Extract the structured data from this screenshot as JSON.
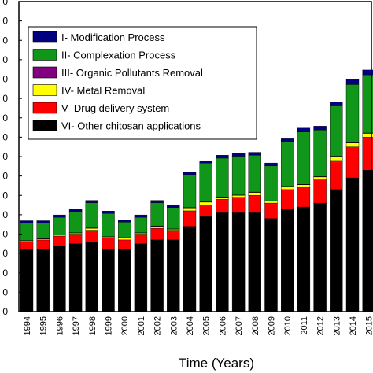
{
  "chart_data": {
    "type": "bar",
    "stacked": true,
    "title": "",
    "xlabel": "Time (Years)",
    "ylabel": "",
    "ylim": [
      0,
      16
    ],
    "yticks": [
      0,
      1,
      2,
      3,
      4,
      5,
      6,
      7,
      8,
      9,
      10,
      11,
      12,
      13,
      14,
      15,
      16
    ],
    "ytick_labels": [
      "0",
      "0",
      "0",
      "0",
      "0",
      "0",
      "0",
      "0",
      "0",
      "0",
      "0",
      "0",
      "0",
      "0",
      "0",
      "0",
      "0"
    ],
    "grid": false,
    "legend_position": "top-left",
    "categories": [
      "1994",
      "1995",
      "1996",
      "1997",
      "1998",
      "1999",
      "2000",
      "2001",
      "2002",
      "2003",
      "2004",
      "2005",
      "2006",
      "2007",
      "2008",
      "2009",
      "2010",
      "2011",
      "2012",
      "2013",
      "2014",
      "2015"
    ],
    "series": [
      {
        "name": "VI- Other chitosan applications",
        "color": "#000000",
        "values": [
          3.2,
          3.2,
          3.4,
          3.5,
          3.6,
          3.2,
          3.2,
          3.5,
          3.7,
          3.7,
          4.4,
          4.9,
          5.1,
          5.1,
          5.1,
          4.8,
          5.3,
          5.4,
          5.6,
          6.3,
          6.9,
          7.3
        ]
      },
      {
        "name": "V-  Drug delivery system",
        "color": "#ff0000",
        "values": [
          0.4,
          0.5,
          0.5,
          0.5,
          0.6,
          0.6,
          0.5,
          0.5,
          0.6,
          0.5,
          0.8,
          0.6,
          0.7,
          0.8,
          0.9,
          0.8,
          1.0,
          1.0,
          1.2,
          1.5,
          1.6,
          1.7
        ]
      },
      {
        "name": "IV- Metal Removal",
        "color": "#ffff00",
        "values": [
          0.05,
          0.05,
          0.05,
          0.05,
          0.1,
          0.05,
          0.1,
          0.05,
          0.1,
          0.05,
          0.15,
          0.15,
          0.1,
          0.1,
          0.15,
          0.1,
          0.15,
          0.15,
          0.15,
          0.2,
          0.2,
          0.2
        ]
      },
      {
        "name": "III- Organic Pollutants Removal",
        "color": "#800080",
        "values": [
          0.02,
          0.02,
          0.02,
          0.02,
          0.02,
          0.02,
          0.02,
          0.02,
          0.02,
          0.02,
          0.02,
          0.02,
          0.02,
          0.02,
          0.02,
          0.02,
          0.02,
          0.02,
          0.02,
          0.02,
          0.02,
          0.02
        ]
      },
      {
        "name": "II-  Complexation Process",
        "color": "#109618",
        "values": [
          0.9,
          0.8,
          0.9,
          1.1,
          1.3,
          1.2,
          0.8,
          0.8,
          1.2,
          1.1,
          1.7,
          2.0,
          2.0,
          2.0,
          1.9,
          1.8,
          2.3,
          2.7,
          2.4,
          2.6,
          3.0,
          3.0
        ]
      },
      {
        "name": "I-   Modification Process",
        "color": "#000080",
        "values": [
          0.12,
          0.12,
          0.12,
          0.12,
          0.12,
          0.12,
          0.12,
          0.12,
          0.12,
          0.12,
          0.12,
          0.12,
          0.15,
          0.15,
          0.15,
          0.15,
          0.15,
          0.2,
          0.2,
          0.2,
          0.25,
          0.25
        ]
      }
    ],
    "legend_order": [
      5,
      4,
      3,
      2,
      1,
      0
    ]
  }
}
